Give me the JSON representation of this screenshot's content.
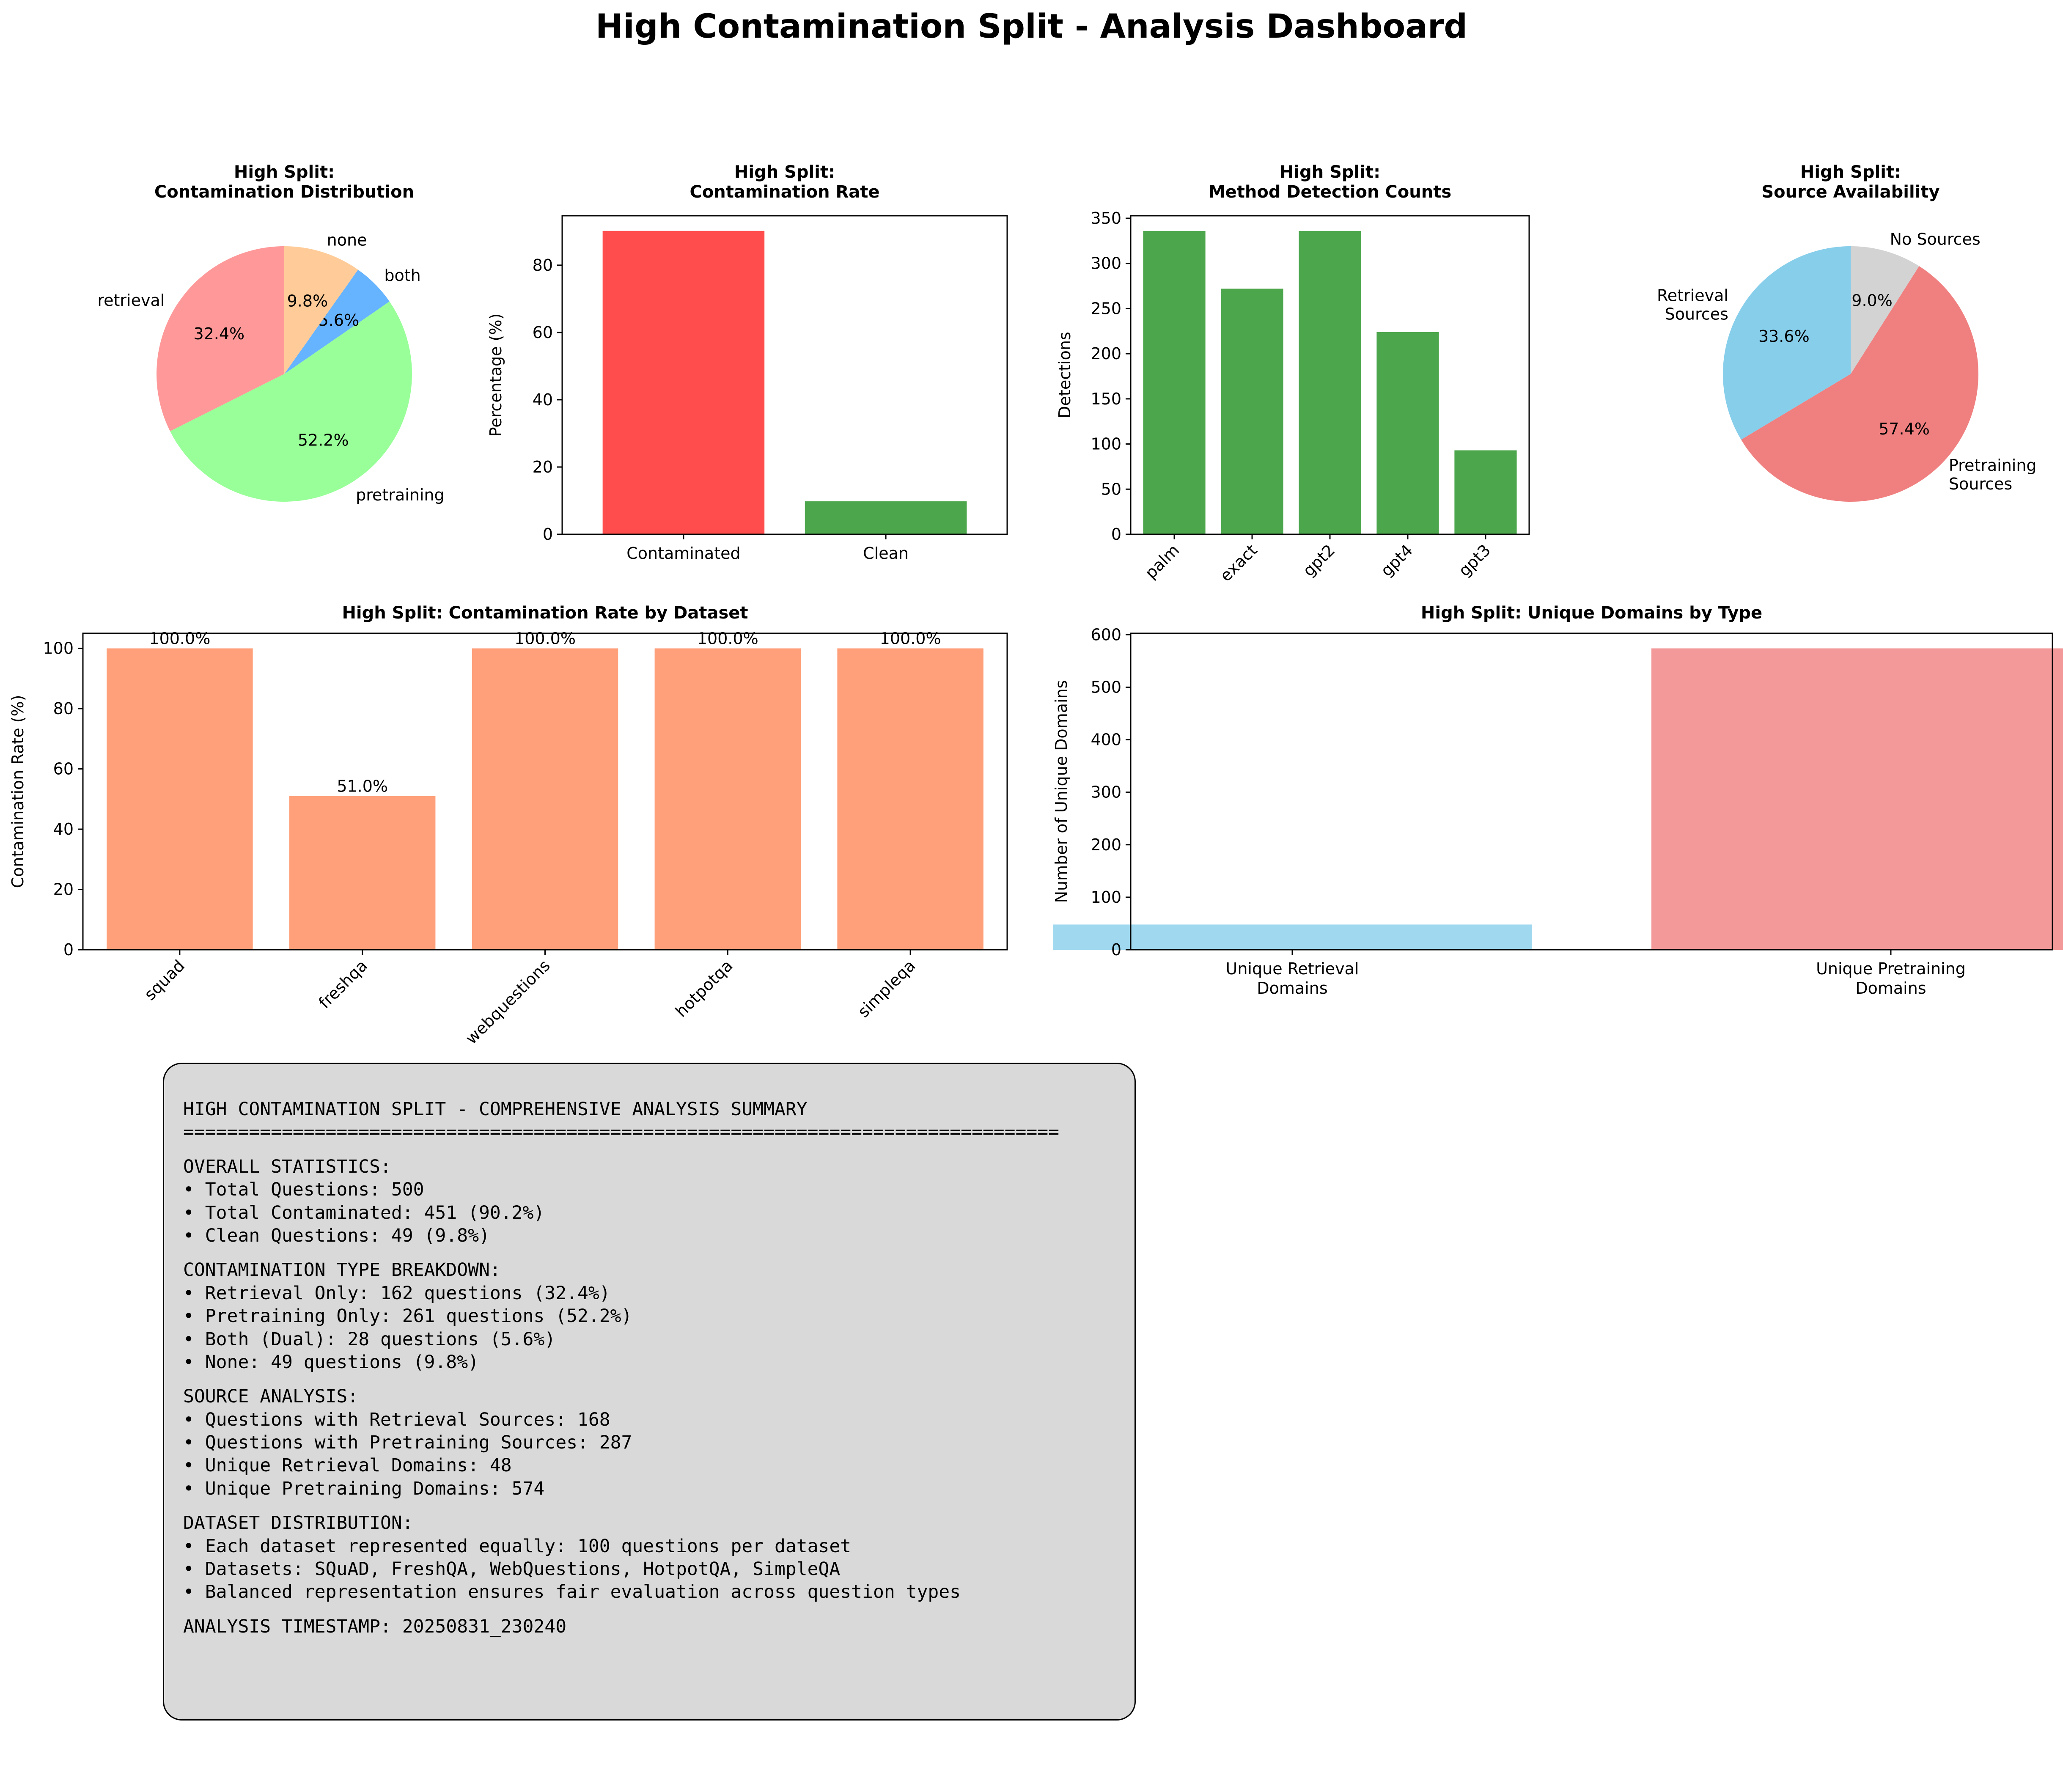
{
  "title": "High Contamination Split - Analysis Dashboard",
  "chart_data": [
    {
      "id": "contam-dist",
      "type": "pie",
      "title": "High Split:\nContamination Distribution",
      "labels": [
        "retrieval",
        "pretraining",
        "both",
        "none"
      ],
      "values": [
        32.4,
        52.2,
        5.6,
        9.8
      ],
      "pct_labels": [
        "32.4%",
        "52.2%",
        "5.6%",
        "9.8%"
      ],
      "colors": [
        "#ff9999",
        "#99ff99",
        "#66b3ff",
        "#ffcc99"
      ]
    },
    {
      "id": "contam-rate",
      "type": "bar",
      "title": "High Split:\nContamination Rate",
      "categories": [
        "Contaminated",
        "Clean"
      ],
      "values": [
        90.2,
        9.8
      ],
      "colors": [
        "#ff4c4c",
        "#4ca64c"
      ],
      "ylabel": "Percentage (%)",
      "ylim": [
        0,
        94.7
      ],
      "yticks": [
        0,
        20,
        40,
        60,
        80
      ]
    },
    {
      "id": "method-counts",
      "type": "bar",
      "title": "High Split:\nMethod Detection Counts",
      "categories": [
        "palm",
        "exact",
        "gpt2",
        "gpt4",
        "gpt3"
      ],
      "values": [
        336,
        272,
        336,
        224,
        93
      ],
      "color": "#4ca64c",
      "ylabel": "Detections",
      "ylim": [
        0,
        352.8
      ],
      "yticks": [
        0,
        50,
        100,
        150,
        200,
        250,
        300,
        350
      ]
    },
    {
      "id": "source-avail",
      "type": "pie",
      "title": "High Split:\nSource Availability",
      "labels": [
        "Retrieval\nSources",
        "Pretraining\nSources",
        "No Sources"
      ],
      "values": [
        33.6,
        57.4,
        9.0
      ],
      "pct_labels": [
        "33.6%",
        "57.4%",
        "9.0%"
      ],
      "colors": [
        "#87ceeb",
        "#f08080",
        "#d3d3d3"
      ]
    },
    {
      "id": "rate-by-dataset",
      "type": "bar",
      "title": "High Split: Contamination Rate by Dataset",
      "categories": [
        "squad",
        "freshqa",
        "webquestions",
        "hotpotqa",
        "simpleqa"
      ],
      "values": [
        100.0,
        51.0,
        100.0,
        100.0,
        100.0
      ],
      "data_labels": [
        "100.0%",
        "51.0%",
        "100.0%",
        "100.0%",
        "100.0%"
      ],
      "color": "#ffa07a",
      "ylabel": "Contamination Rate (%)",
      "ylim": [
        0,
        105
      ],
      "yticks": [
        0,
        20,
        40,
        60,
        80,
        100
      ]
    },
    {
      "id": "unique-domains",
      "type": "bar",
      "title": "High Split: Unique Domains by Type",
      "categories": [
        "Unique Retrieval\nDomains",
        "Unique Pretraining\nDomains"
      ],
      "values": [
        48,
        574
      ],
      "colors": [
        "#87ceeb",
        "#f08080"
      ],
      "ylabel": "Number of Unique Domains",
      "ylim": [
        0,
        602.7
      ],
      "yticks": [
        0,
        100,
        200,
        300,
        400,
        500,
        600
      ]
    }
  ],
  "summary": {
    "lines": [
      "HIGH CONTAMINATION SPLIT - COMPREHENSIVE ANALYSIS SUMMARY",
      "================================================================================",
      "",
      "OVERALL STATISTICS:",
      "• Total Questions: 500",
      "• Total Contaminated: 451 (90.2%)",
      "• Clean Questions: 49 (9.8%)",
      "",
      "CONTAMINATION TYPE BREAKDOWN:",
      "• Retrieval Only: 162 questions (32.4%)",
      "• Pretraining Only: 261 questions (52.2%)",
      "• Both (Dual): 28 questions (5.6%)",
      "• None: 49 questions (9.8%)",
      "",
      "SOURCE ANALYSIS:",
      "• Questions with Retrieval Sources: 168",
      "• Questions with Pretraining Sources: 287",
      "• Unique Retrieval Domains: 48",
      "• Unique Pretraining Domains: 574",
      "",
      "DATASET DISTRIBUTION:",
      "• Each dataset represented equally: 100 questions per dataset",
      "• Datasets: SQuAD, FreshQA, WebQuestions, HotpotQA, SimpleQA",
      "• Balanced representation ensures fair evaluation across question types",
      "",
      "ANALYSIS TIMESTAMP: 20250831_230240"
    ]
  }
}
